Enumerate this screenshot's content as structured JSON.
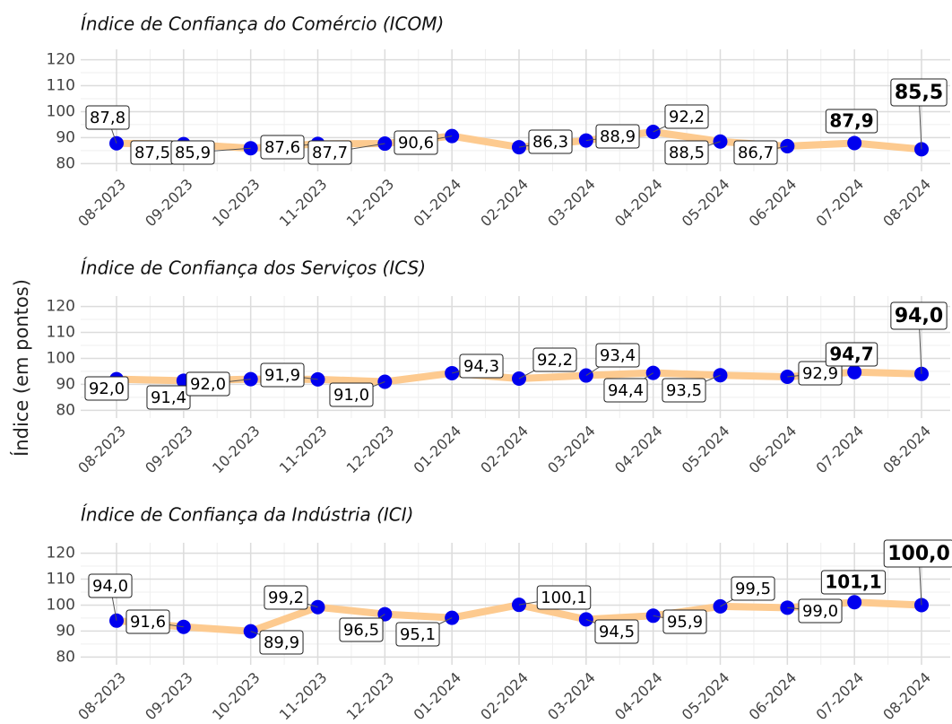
{
  "ylabel": "Índice (em pontos)",
  "chart_data": [
    {
      "type": "line",
      "title": "Índice de Confiança do Comércio (ICOM)",
      "categories": [
        "08-2023",
        "09-2023",
        "10-2023",
        "11-2023",
        "12-2023",
        "01-2024",
        "02-2024",
        "03-2024",
        "04-2024",
        "05-2024",
        "06-2024",
        "07-2024",
        "08-2024"
      ],
      "series": [
        {
          "name": "ICOM",
          "color": "#fdca8f",
          "marker_color": "#0000ee",
          "values": [
            87.8,
            87.5,
            85.9,
            87.6,
            87.7,
            90.6,
            86.3,
            88.9,
            92.2,
            88.5,
            86.7,
            87.9,
            85.5
          ],
          "value_labels": [
            "87,8",
            "87,5",
            "85,9",
            "87,6",
            "87,7",
            "90,6",
            "86,3",
            "88,9",
            "92,2",
            "88,5",
            "86,7",
            "87,9",
            "85,5"
          ]
        }
      ],
      "ylim": [
        77,
        124
      ],
      "yticks": [
        80,
        90,
        100,
        110,
        120
      ],
      "grid": true
    },
    {
      "type": "line",
      "title": "Índice de Confiança dos Serviços (ICS)",
      "categories": [
        "08-2023",
        "09-2023",
        "10-2023",
        "11-2023",
        "12-2023",
        "01-2024",
        "02-2024",
        "03-2024",
        "04-2024",
        "05-2024",
        "06-2024",
        "07-2024",
        "08-2024"
      ],
      "series": [
        {
          "name": "ICS",
          "color": "#fdca8f",
          "marker_color": "#0000ee",
          "values": [
            92.0,
            91.4,
            92.0,
            91.9,
            91.0,
            94.3,
            92.2,
            93.4,
            94.4,
            93.5,
            92.9,
            94.7,
            94.0
          ],
          "value_labels": [
            "92,0",
            "91,4",
            "92,0",
            "91,9",
            "91,0",
            "94,3",
            "92,2",
            "93,4",
            "94,4",
            "93,5",
            "92,9",
            "94,7",
            "94,0"
          ]
        }
      ],
      "ylim": [
        77,
        124
      ],
      "yticks": [
        80,
        90,
        100,
        110,
        120
      ],
      "grid": true
    },
    {
      "type": "line",
      "title": "Índice de Confiança da Indústria (ICI)",
      "categories": [
        "08-2023",
        "09-2023",
        "10-2023",
        "11-2023",
        "12-2023",
        "01-2024",
        "02-2024",
        "03-2024",
        "04-2024",
        "05-2024",
        "06-2024",
        "07-2024",
        "08-2024"
      ],
      "series": [
        {
          "name": "ICI",
          "color": "#fdca8f",
          "marker_color": "#0000ee",
          "values": [
            94.0,
            91.6,
            89.9,
            99.2,
            96.5,
            95.1,
            100.1,
            94.5,
            95.9,
            99.5,
            99.0,
            101.1,
            100.0
          ],
          "value_labels": [
            "94,0",
            "91,6",
            "89,9",
            "99,2",
            "96,5",
            "95,1",
            "100,1",
            "94,5",
            "95,9",
            "99,5",
            "99,0",
            "101,1",
            "100,0"
          ]
        }
      ],
      "ylim": [
        77,
        124
      ],
      "yticks": [
        80,
        90,
        100,
        110,
        120
      ],
      "grid": true
    }
  ]
}
